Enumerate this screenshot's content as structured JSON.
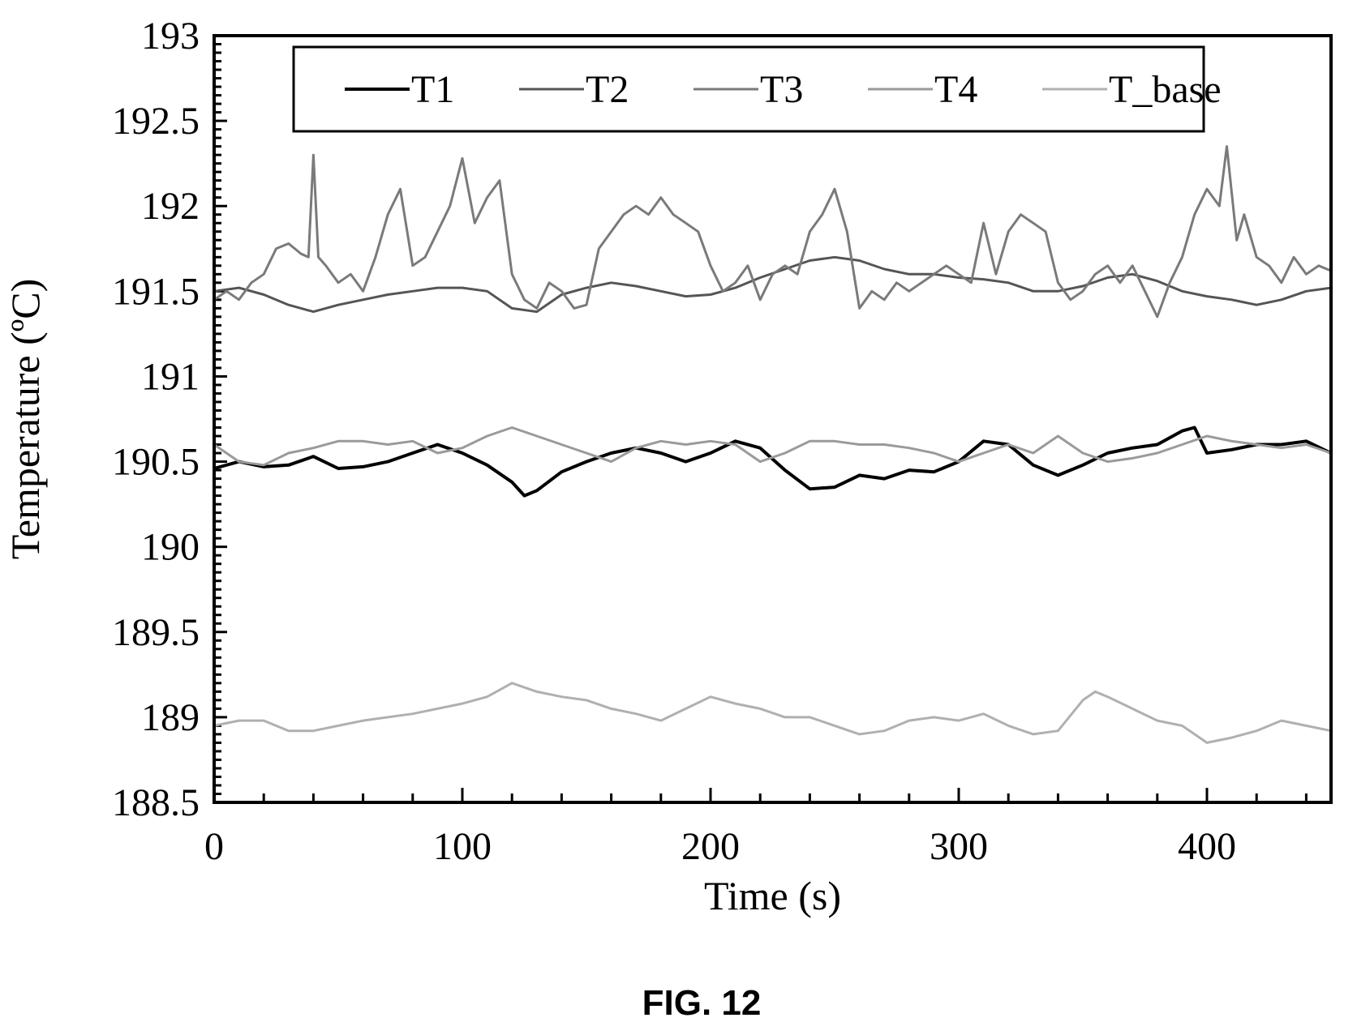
{
  "figure": {
    "caption": "FIG. 12"
  },
  "chart_data": {
    "type": "line",
    "title": "",
    "xlabel": "Time (s)",
    "ylabel": "Temperature (ºC)",
    "xlim": [
      0,
      450
    ],
    "ylim": [
      188.5,
      193
    ],
    "x_ticks": [
      0,
      100,
      200,
      300,
      400
    ],
    "x_tick_labels": [
      "0",
      "100",
      "200",
      "300",
      "400"
    ],
    "y_ticks": [
      188.5,
      189,
      189.5,
      190,
      190.5,
      191,
      191.5,
      192,
      192.5,
      193
    ],
    "y_tick_labels": [
      "188.5",
      "189",
      "189.5",
      "190",
      "190.5",
      "191",
      "191.5",
      "192",
      "192.5",
      "193"
    ],
    "grid": false,
    "legend": {
      "placement": "top",
      "entries": [
        "T1",
        "T2",
        "T3",
        "T4",
        "T_base"
      ]
    },
    "series": [
      {
        "name": "T1",
        "color": "#000000",
        "x": [
          0,
          10,
          20,
          30,
          40,
          50,
          60,
          70,
          80,
          90,
          100,
          110,
          120,
          125,
          130,
          140,
          150,
          160,
          170,
          180,
          190,
          200,
          210,
          220,
          230,
          240,
          250,
          260,
          270,
          280,
          290,
          300,
          310,
          320,
          330,
          340,
          350,
          360,
          370,
          380,
          390,
          395,
          400,
          410,
          420,
          430,
          440,
          450
        ],
        "y": [
          190.46,
          190.5,
          190.47,
          190.48,
          190.53,
          190.46,
          190.47,
          190.5,
          190.55,
          190.6,
          190.55,
          190.48,
          190.38,
          190.3,
          190.33,
          190.44,
          190.5,
          190.55,
          190.58,
          190.55,
          190.5,
          190.55,
          190.62,
          190.58,
          190.45,
          190.34,
          190.35,
          190.42,
          190.4,
          190.45,
          190.44,
          190.5,
          190.62,
          190.6,
          190.48,
          190.42,
          190.48,
          190.55,
          190.58,
          190.6,
          190.68,
          190.7,
          190.55,
          190.57,
          190.6,
          190.6,
          190.62,
          190.55
        ]
      },
      {
        "name": "T2",
        "color": "#555555",
        "x": [
          0,
          10,
          20,
          30,
          40,
          50,
          60,
          70,
          80,
          90,
          100,
          110,
          120,
          130,
          140,
          150,
          160,
          170,
          180,
          190,
          200,
          210,
          220,
          230,
          240,
          250,
          260,
          270,
          280,
          290,
          300,
          310,
          320,
          330,
          340,
          350,
          360,
          370,
          380,
          390,
          400,
          410,
          420,
          430,
          440,
          450
        ],
        "y": [
          191.5,
          191.52,
          191.48,
          191.42,
          191.38,
          191.42,
          191.45,
          191.48,
          191.5,
          191.52,
          191.52,
          191.5,
          191.4,
          191.38,
          191.48,
          191.52,
          191.55,
          191.53,
          191.5,
          191.47,
          191.48,
          191.52,
          191.58,
          191.63,
          191.68,
          191.7,
          191.68,
          191.63,
          191.6,
          191.6,
          191.58,
          191.57,
          191.55,
          191.5,
          191.5,
          191.53,
          191.58,
          191.6,
          191.56,
          191.5,
          191.47,
          191.45,
          191.42,
          191.45,
          191.5,
          191.52
        ]
      },
      {
        "name": "T3",
        "color": "#7a7a7a",
        "x": [
          0,
          5,
          10,
          15,
          20,
          25,
          30,
          35,
          38,
          40,
          42,
          45,
          50,
          55,
          60,
          65,
          70,
          75,
          80,
          85,
          90,
          95,
          100,
          105,
          110,
          115,
          120,
          125,
          130,
          135,
          140,
          145,
          150,
          155,
          160,
          165,
          170,
          175,
          180,
          185,
          190,
          195,
          200,
          205,
          210,
          215,
          220,
          225,
          230,
          235,
          240,
          245,
          250,
          255,
          260,
          265,
          270,
          275,
          280,
          285,
          290,
          295,
          300,
          305,
          310,
          315,
          320,
          325,
          330,
          335,
          340,
          345,
          350,
          355,
          360,
          365,
          370,
          375,
          380,
          385,
          390,
          395,
          400,
          405,
          408,
          412,
          415,
          420,
          425,
          430,
          435,
          440,
          445,
          450
        ],
        "y": [
          191.45,
          191.5,
          191.45,
          191.55,
          191.6,
          191.75,
          191.78,
          191.72,
          191.7,
          192.3,
          191.7,
          191.65,
          191.55,
          191.6,
          191.5,
          191.7,
          191.95,
          192.1,
          191.65,
          191.7,
          191.85,
          192.0,
          192.28,
          191.9,
          192.05,
          192.15,
          191.6,
          191.45,
          191.4,
          191.55,
          191.5,
          191.4,
          191.42,
          191.75,
          191.85,
          191.95,
          192.0,
          191.95,
          192.05,
          191.95,
          191.9,
          191.85,
          191.65,
          191.5,
          191.55,
          191.65,
          191.45,
          191.6,
          191.65,
          191.6,
          191.85,
          191.95,
          192.1,
          191.85,
          191.4,
          191.5,
          191.45,
          191.55,
          191.5,
          191.55,
          191.6,
          191.65,
          191.6,
          191.55,
          191.9,
          191.6,
          191.85,
          191.95,
          191.9,
          191.85,
          191.55,
          191.45,
          191.5,
          191.6,
          191.65,
          191.55,
          191.65,
          191.5,
          191.35,
          191.55,
          191.7,
          191.95,
          192.1,
          192.0,
          192.35,
          191.8,
          191.95,
          191.7,
          191.65,
          191.55,
          191.7,
          191.6,
          191.65,
          191.62
        ]
      },
      {
        "name": "T4",
        "color": "#9a9a9a",
        "x": [
          0,
          10,
          20,
          30,
          40,
          50,
          60,
          70,
          80,
          90,
          100,
          110,
          120,
          130,
          140,
          150,
          160,
          170,
          180,
          190,
          200,
          210,
          220,
          230,
          240,
          250,
          260,
          270,
          280,
          290,
          300,
          310,
          320,
          330,
          340,
          350,
          360,
          370,
          380,
          390,
          400,
          410,
          420,
          430,
          440,
          450
        ],
        "y": [
          190.6,
          190.5,
          190.48,
          190.55,
          190.58,
          190.62,
          190.62,
          190.6,
          190.62,
          190.55,
          190.58,
          190.65,
          190.7,
          190.65,
          190.6,
          190.55,
          190.5,
          190.58,
          190.62,
          190.6,
          190.62,
          190.6,
          190.5,
          190.55,
          190.62,
          190.62,
          190.6,
          190.6,
          190.58,
          190.55,
          190.5,
          190.55,
          190.6,
          190.55,
          190.65,
          190.55,
          190.5,
          190.52,
          190.55,
          190.6,
          190.65,
          190.62,
          190.6,
          190.58,
          190.6,
          190.55
        ]
      },
      {
        "name": "T_base",
        "color": "#b0b0b0",
        "x": [
          0,
          10,
          20,
          30,
          40,
          50,
          60,
          70,
          80,
          90,
          100,
          110,
          120,
          130,
          140,
          150,
          160,
          170,
          180,
          190,
          200,
          210,
          220,
          230,
          240,
          250,
          260,
          270,
          280,
          290,
          300,
          310,
          320,
          330,
          340,
          350,
          355,
          360,
          370,
          380,
          390,
          400,
          410,
          420,
          430,
          440,
          450
        ],
        "y": [
          188.95,
          188.98,
          188.98,
          188.92,
          188.92,
          188.95,
          188.98,
          189.0,
          189.02,
          189.05,
          189.08,
          189.12,
          189.2,
          189.15,
          189.12,
          189.1,
          189.05,
          189.02,
          188.98,
          189.05,
          189.12,
          189.08,
          189.05,
          189.0,
          189.0,
          188.95,
          188.9,
          188.92,
          188.98,
          189.0,
          188.98,
          189.02,
          188.95,
          188.9,
          188.92,
          189.1,
          189.15,
          189.12,
          189.05,
          188.98,
          188.95,
          188.85,
          188.88,
          188.92,
          188.98,
          188.95,
          188.92
        ]
      }
    ]
  }
}
